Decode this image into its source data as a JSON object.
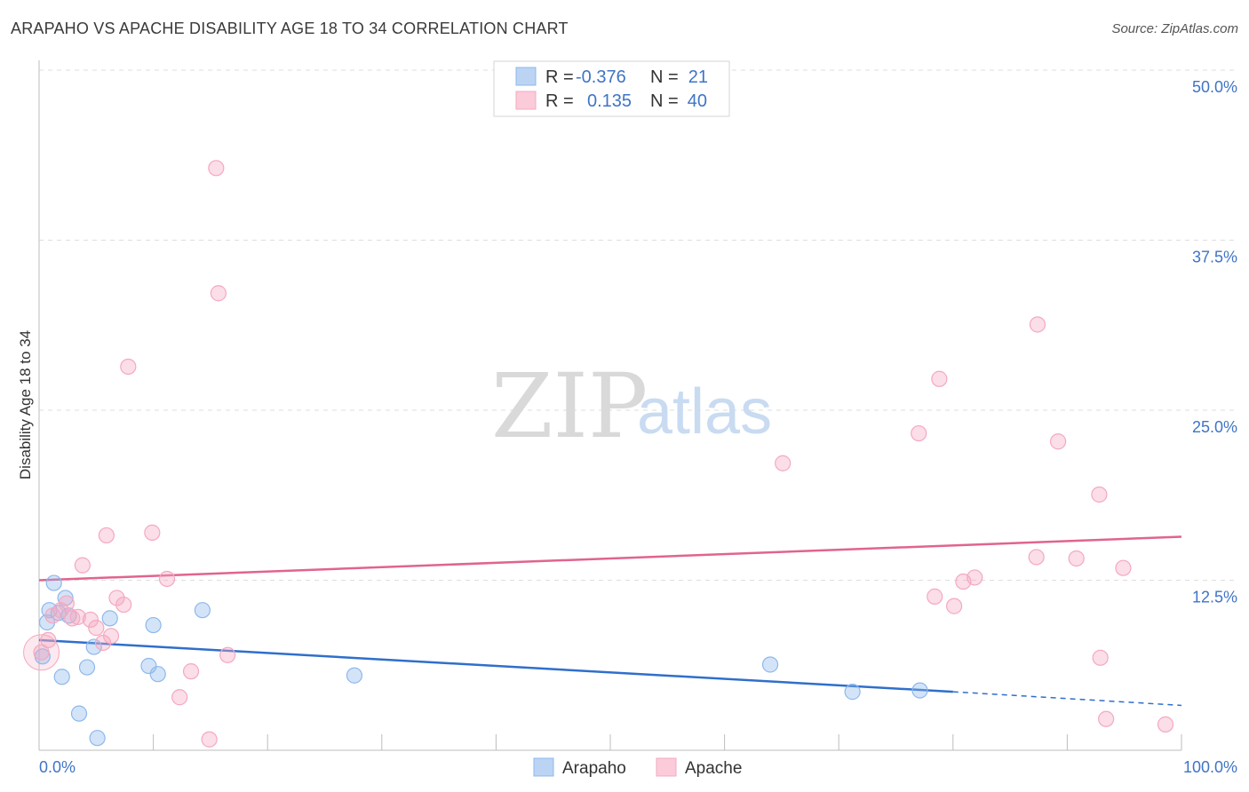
{
  "title": "ARAPAHO VS APACHE DISABILITY AGE 18 TO 34 CORRELATION CHART",
  "source": "Source: ZipAtlas.com",
  "chart_data": {
    "type": "scatter",
    "ylabel": "Disability Age 18 to 34",
    "xlim": [
      0,
      100
    ],
    "ylim": [
      0,
      50
    ],
    "y_ticks": [
      {
        "value": 12.5,
        "label": "12.5%"
      },
      {
        "value": 25.0,
        "label": "25.0%"
      },
      {
        "value": 37.5,
        "label": "37.5%"
      },
      {
        "value": 50.0,
        "label": "50.0%"
      }
    ],
    "x_tick_labels": {
      "min": "0.0%",
      "max": "100.0%"
    },
    "watermark": {
      "zip": "ZIP",
      "atlas": "atlas"
    },
    "legend": [
      {
        "series": "Arapaho",
        "r_label": "R =",
        "r_value": "-0.376",
        "n_label": "N =",
        "n_value": "21"
      },
      {
        "series": "Apache",
        "r_label": "R =",
        "r_value": "0.135",
        "n_label": "N =",
        "n_value": "40"
      }
    ],
    "series": [
      {
        "name": "Arapaho",
        "color": "#8db8ec",
        "line_color": "#2f6fcb",
        "trend": {
          "x0": 0,
          "y0": 8.1,
          "x1": 80,
          "y1": 4.3,
          "dash_to": 100,
          "dash_y": 3.3
        },
        "points": [
          [
            0.3,
            6.9
          ],
          [
            0.7,
            9.4
          ],
          [
            0.9,
            10.3
          ],
          [
            1.3,
            12.3
          ],
          [
            1.7,
            10.1
          ],
          [
            2.0,
            5.4
          ],
          [
            2.3,
            11.2
          ],
          [
            2.6,
            9.9
          ],
          [
            3.5,
            2.7
          ],
          [
            4.2,
            6.1
          ],
          [
            4.8,
            7.6
          ],
          [
            5.1,
            0.9
          ],
          [
            6.2,
            9.7
          ],
          [
            9.6,
            6.2
          ],
          [
            10.0,
            9.2
          ],
          [
            10.4,
            5.6
          ],
          [
            14.3,
            10.3
          ],
          [
            27.6,
            5.5
          ],
          [
            64.0,
            6.3
          ],
          [
            71.2,
            4.3
          ],
          [
            77.1,
            4.4
          ]
        ]
      },
      {
        "name": "Apache",
        "color": "#f5a8c0",
        "line_color": "#e0648e",
        "trend": {
          "x0": 0,
          "y0": 12.5,
          "x1": 100,
          "y1": 15.7
        },
        "points": [
          [
            0.2,
            7.2
          ],
          [
            0.8,
            8.1
          ],
          [
            1.2,
            9.9
          ],
          [
            1.9,
            10.3
          ],
          [
            2.4,
            10.8
          ],
          [
            2.9,
            9.7
          ],
          [
            3.4,
            9.8
          ],
          [
            3.8,
            13.6
          ],
          [
            4.5,
            9.6
          ],
          [
            5.0,
            9.0
          ],
          [
            5.6,
            7.9
          ],
          [
            5.9,
            15.8
          ],
          [
            6.3,
            8.4
          ],
          [
            6.8,
            11.2
          ],
          [
            7.4,
            10.7
          ],
          [
            7.8,
            28.2
          ],
          [
            9.9,
            16.0
          ],
          [
            11.2,
            12.6
          ],
          [
            12.3,
            3.9
          ],
          [
            13.3,
            5.8
          ],
          [
            14.9,
            0.8
          ],
          [
            15.5,
            42.8
          ],
          [
            15.7,
            33.6
          ],
          [
            16.5,
            7.0
          ],
          [
            65.1,
            21.1
          ],
          [
            77.0,
            23.3
          ],
          [
            78.4,
            11.3
          ],
          [
            78.8,
            27.3
          ],
          [
            80.1,
            10.6
          ],
          [
            80.9,
            12.4
          ],
          [
            81.9,
            12.7
          ],
          [
            87.3,
            14.2
          ],
          [
            87.4,
            31.3
          ],
          [
            89.2,
            22.7
          ],
          [
            90.8,
            14.1
          ],
          [
            92.8,
            18.8
          ],
          [
            92.9,
            6.8
          ],
          [
            93.4,
            2.3
          ],
          [
            94.9,
            13.4
          ],
          [
            98.6,
            1.9
          ]
        ]
      }
    ]
  }
}
